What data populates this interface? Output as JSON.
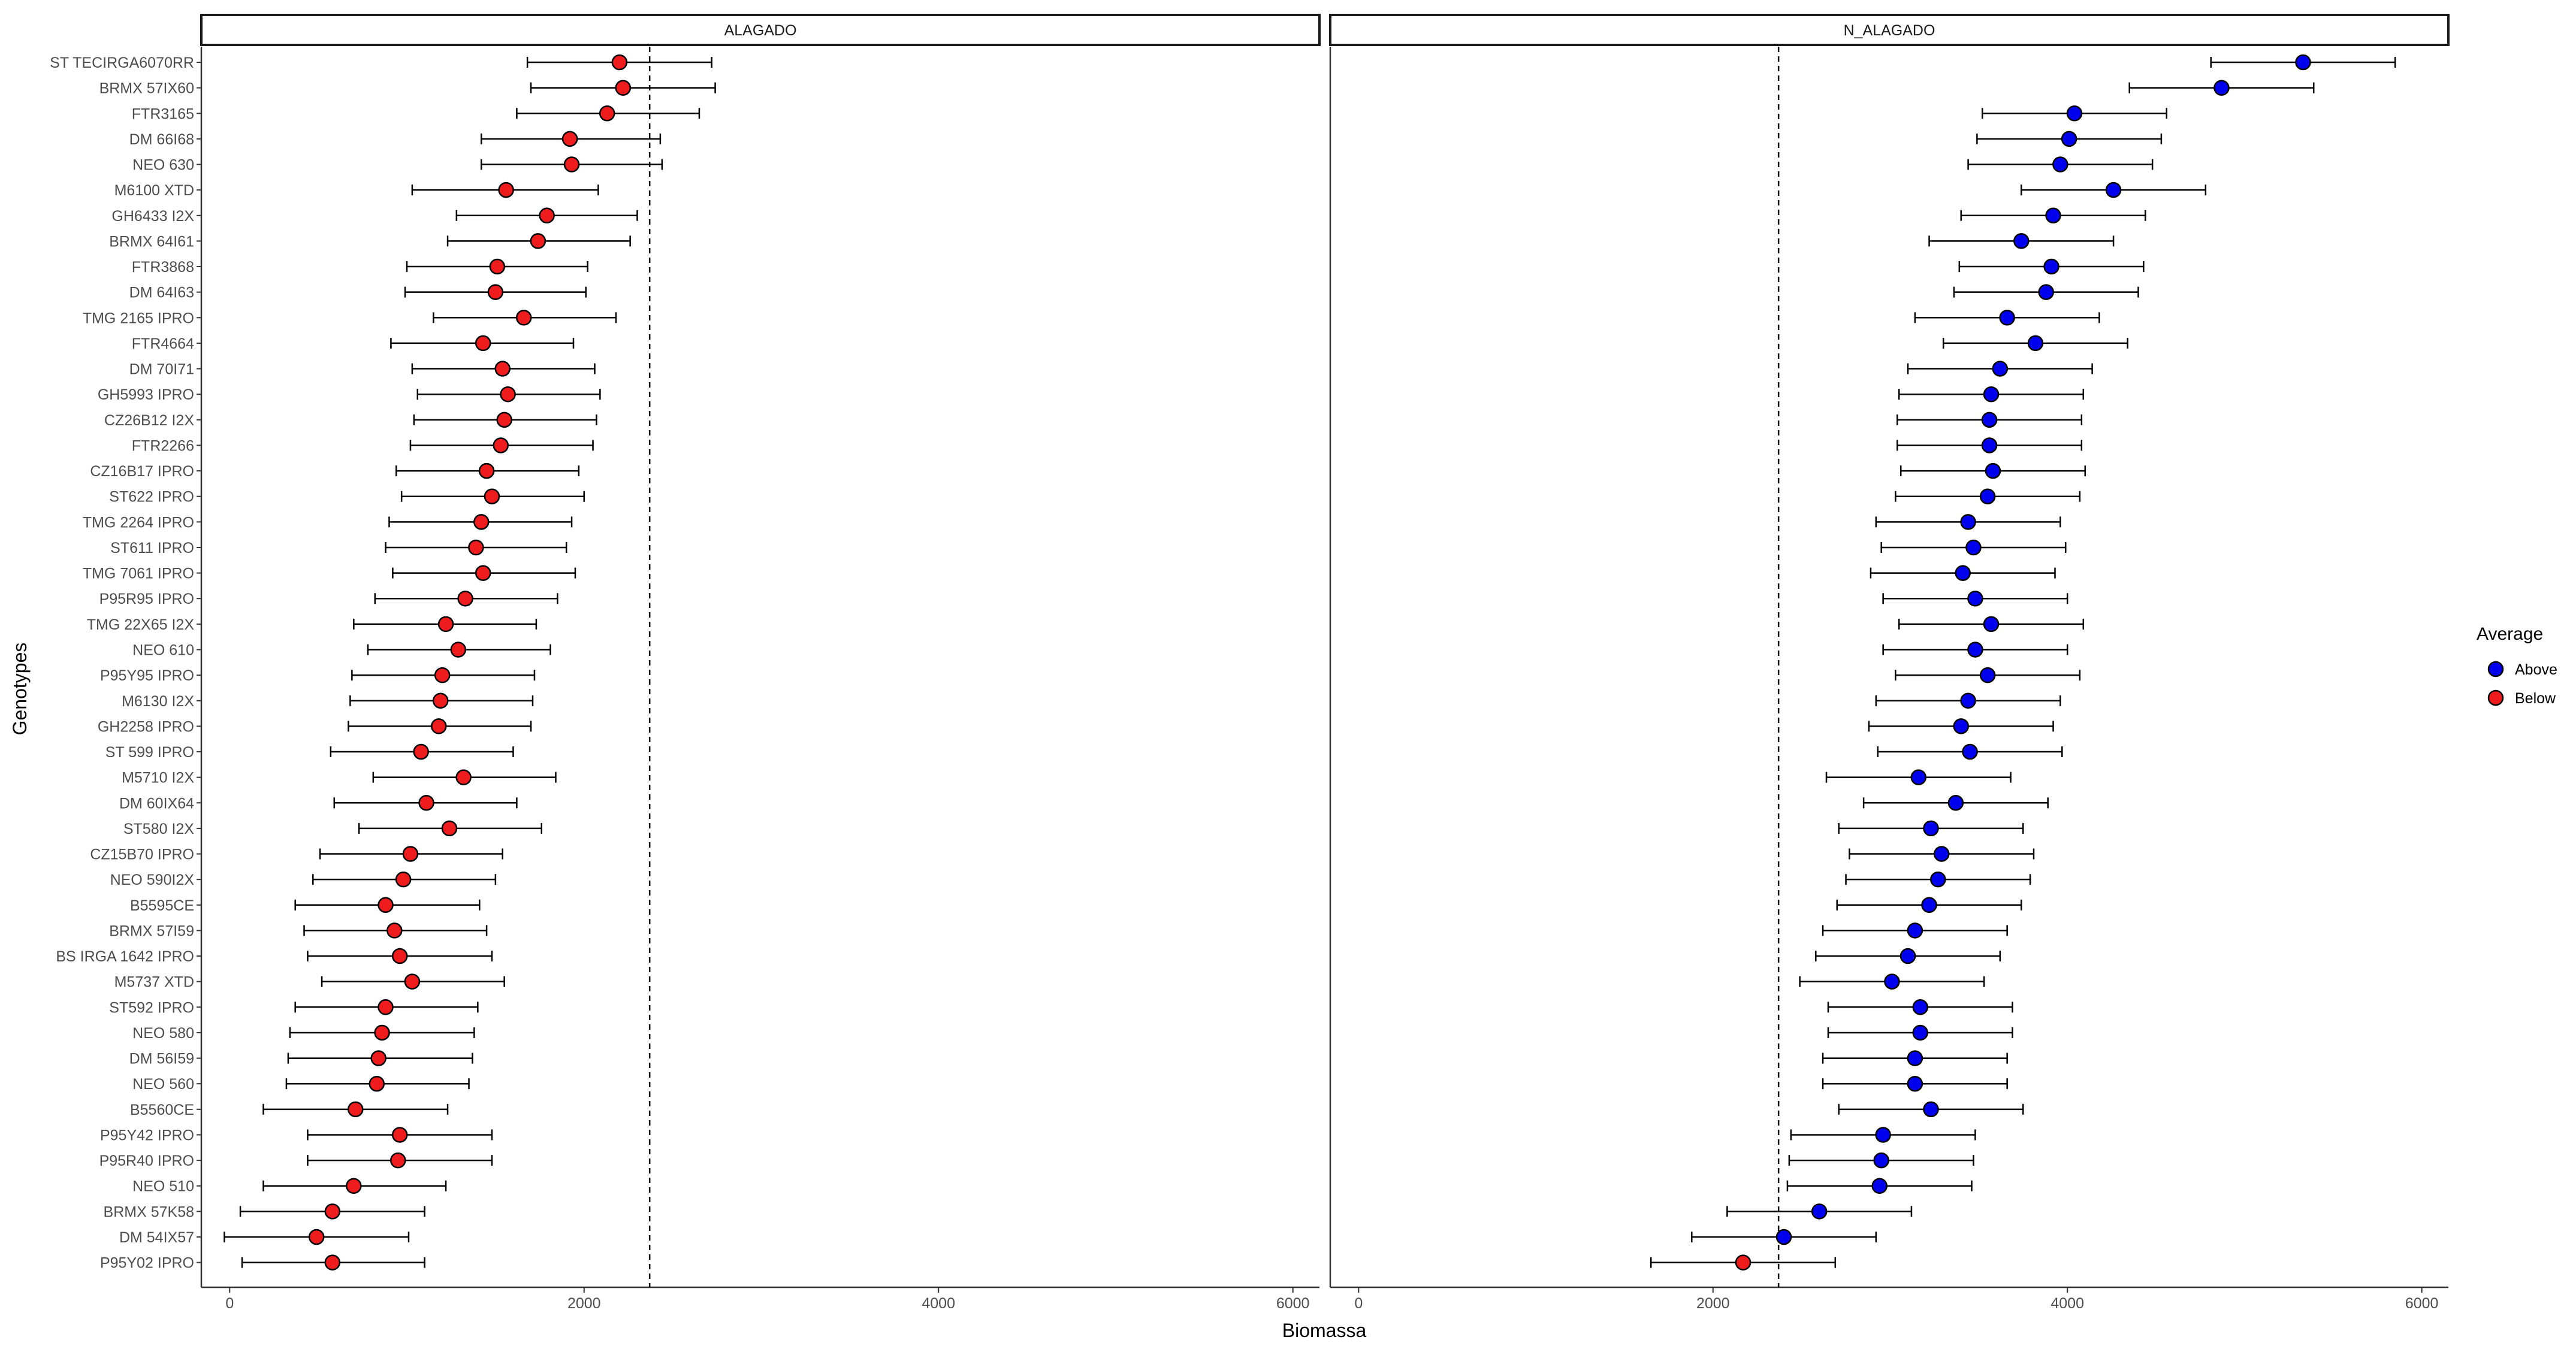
{
  "chart_data": {
    "type": "scatter",
    "subtype": "dot-plot with error bars, faceted",
    "xlabel": "Biomassa",
    "ylabel": "Genotypes",
    "xlim": [
      -160,
      6150
    ],
    "xticks": [
      0,
      2000,
      4000,
      6000
    ],
    "grid": false,
    "legend": {
      "title": "Average",
      "position": "right",
      "entries": [
        {
          "label": "Above",
          "color": "#0000ee"
        },
        {
          "label": "Below",
          "color": "#ee1c1c"
        }
      ]
    },
    "genotypes": [
      "ST TECIRGA6070RR",
      "BRMX 57IX60",
      "FTR3165",
      "DM 66I68",
      "NEO 630",
      "M6100 XTD",
      "GH6433 I2X",
      "BRMX 64I61",
      "FTR3868",
      "DM 64I63",
      "TMG 2165 IPRO",
      "FTR4664",
      "DM 70I71",
      "GH5993 IPRO",
      "CZ26B12 I2X",
      "FTR2266",
      "CZ16B17 IPRO",
      "ST622 IPRO",
      "TMG 2264 IPRO",
      "ST611 IPRO",
      "TMG 7061 IPRO",
      "P95R95 IPRO",
      "TMG 22X65 I2X",
      "NEO 610",
      "P95Y95 IPRO",
      "M6130 I2X",
      "GH2258 IPRO",
      "ST 599 IPRO",
      "M5710 I2X",
      "DM 60IX64",
      "ST580 I2X",
      "CZ15B70 IPRO",
      "NEO 590I2X",
      "B5595CE",
      "BRMX 57I59",
      "BS IRGA 1642 IPRO",
      "M5737 XTD",
      "ST592 IPRO",
      "NEO 580",
      "DM 56I59",
      "NEO 560",
      "B5560CE",
      "P95Y42 IPRO",
      "P95R40 IPRO",
      "NEO 510",
      "BRMX 57K58",
      "DM 54IX57",
      "P95Y02 IPRO"
    ],
    "panels": [
      {
        "name": "ALAGADO",
        "reference_line": 2370,
        "series": [
          {
            "name": "Below",
            "color": "#ee1c1c",
            "values": [
              2200,
              2220,
              2130,
              1920,
              1930,
              1560,
              1790,
              1740,
              1510,
              1500,
              1660,
              1430,
              1540,
              1570,
              1550,
              1530,
              1450,
              1480,
              1420,
              1390,
              1430,
              1330,
              1220,
              1290,
              1200,
              1190,
              1180,
              1080,
              1320,
              1110,
              1240,
              1020,
              980,
              880,
              930,
              960,
              1030,
              880,
              860,
              840,
              830,
              710,
              960,
              950,
              700,
              580,
              490,
              580
            ],
            "lower": [
              1680,
              1700,
              1620,
              1420,
              1420,
              1030,
              1280,
              1230,
              1000,
              990,
              1150,
              910,
              1030,
              1060,
              1040,
              1020,
              940,
              970,
              900,
              880,
              920,
              820,
              700,
              780,
              690,
              680,
              670,
              570,
              810,
              590,
              730,
              510,
              470,
              370,
              420,
              440,
              520,
              370,
              340,
              330,
              320,
              190,
              440,
              440,
              190,
              60,
              -30,
              70
            ],
            "upper": [
              2720,
              2740,
              2650,
              2430,
              2440,
              2080,
              2300,
              2260,
              2020,
              2010,
              2180,
              1940,
              2060,
              2090,
              2070,
              2050,
              1970,
              2000,
              1930,
              1900,
              1950,
              1850,
              1730,
              1810,
              1720,
              1710,
              1700,
              1600,
              1840,
              1620,
              1760,
              1540,
              1500,
              1410,
              1450,
              1480,
              1550,
              1400,
              1380,
              1370,
              1350,
              1230,
              1480,
              1480,
              1220,
              1100,
              1010,
              1100
            ]
          }
        ]
      },
      {
        "name": "N_ALAGADO",
        "reference_line": 2370,
        "series": [
          {
            "name": "Above",
            "color": "#0000ee",
            "values": [
              5330,
              4870,
              4040,
              4010,
              3960,
              4260,
              3920,
              3740,
              3910,
              3880,
              3660,
              3820,
              3620,
              3570,
              3560,
              3560,
              3580,
              3550,
              3440,
              3470,
              3410,
              3480,
              3570,
              3480,
              3550,
              3440,
              3400,
              3450,
              3160,
              3370,
              3230,
              3290,
              3270,
              3220,
              3140,
              3100,
              3010,
              3170,
              3170,
              3140,
              3140,
              3230,
              2960,
              2950,
              2940,
              2600,
              2400,
              null
            ],
            "lower": [
              4810,
              4350,
              3520,
              3490,
              3440,
              3740,
              3400,
              3220,
              3390,
              3360,
              3140,
              3300,
              3100,
              3050,
              3040,
              3040,
              3060,
              3030,
              2920,
              2950,
              2890,
              2960,
              3050,
              2960,
              3030,
              2920,
              2880,
              2930,
              2640,
              2850,
              2710,
              2770,
              2750,
              2700,
              2620,
              2580,
              2490,
              2650,
              2650,
              2620,
              2620,
              2710,
              2440,
              2430,
              2420,
              2080,
              1880,
              null
            ],
            "upper": [
              5850,
              5390,
              4560,
              4530,
              4480,
              4780,
              4440,
              4260,
              4430,
              4400,
              4180,
              4340,
              4140,
              4090,
              4080,
              4080,
              4100,
              4070,
              3960,
              3990,
              3930,
              4000,
              4090,
              4000,
              4070,
              3960,
              3920,
              3970,
              3680,
              3890,
              3750,
              3810,
              3790,
              3740,
              3660,
              3620,
              3530,
              3690,
              3690,
              3660,
              3660,
              3750,
              3480,
              3470,
              3460,
              3120,
              2920,
              null
            ]
          },
          {
            "name": "Below",
            "color": "#ee1c1c",
            "values": [
              null,
              null,
              null,
              null,
              null,
              null,
              null,
              null,
              null,
              null,
              null,
              null,
              null,
              null,
              null,
              null,
              null,
              null,
              null,
              null,
              null,
              null,
              null,
              null,
              null,
              null,
              null,
              null,
              null,
              null,
              null,
              null,
              null,
              null,
              null,
              null,
              null,
              null,
              null,
              null,
              null,
              null,
              null,
              null,
              null,
              null,
              null,
              2170
            ],
            "lower": [
              null,
              null,
              null,
              null,
              null,
              null,
              null,
              null,
              null,
              null,
              null,
              null,
              null,
              null,
              null,
              null,
              null,
              null,
              null,
              null,
              null,
              null,
              null,
              null,
              null,
              null,
              null,
              null,
              null,
              null,
              null,
              null,
              null,
              null,
              null,
              null,
              null,
              null,
              null,
              null,
              null,
              null,
              null,
              null,
              null,
              null,
              null,
              1650
            ],
            "upper": [
              null,
              null,
              null,
              null,
              null,
              null,
              null,
              null,
              null,
              null,
              null,
              null,
              null,
              null,
              null,
              null,
              null,
              null,
              null,
              null,
              null,
              null,
              null,
              null,
              null,
              null,
              null,
              null,
              null,
              null,
              null,
              null,
              null,
              null,
              null,
              null,
              null,
              null,
              null,
              null,
              null,
              null,
              null,
              null,
              null,
              null,
              null,
              2690
            ]
          }
        ]
      }
    ]
  }
}
